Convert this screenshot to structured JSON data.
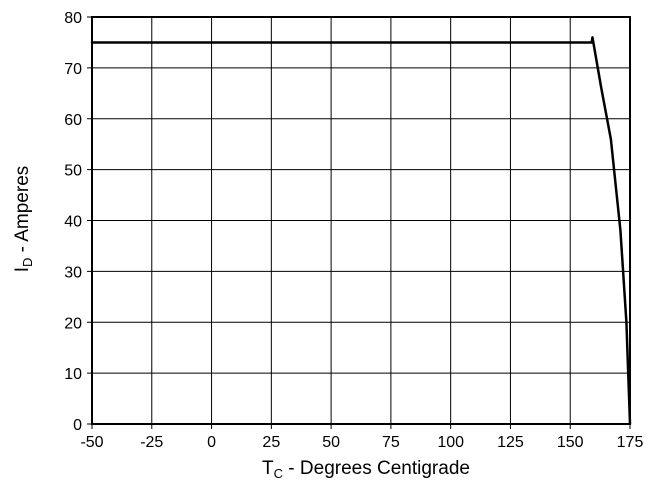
{
  "chart_data": {
    "type": "line",
    "title": "",
    "xlabel": {
      "symbol": "T",
      "subscript": "C",
      "rest": " - Degrees Centigrade"
    },
    "ylabel": {
      "symbol": "I",
      "subscript": "D",
      "rest": " - Amperes"
    },
    "xlim": [
      -50,
      175
    ],
    "ylim": [
      0,
      80
    ],
    "x_ticks": [
      "-50",
      "-25",
      "0",
      "25",
      "50",
      "75",
      "100",
      "125",
      "150",
      "175"
    ],
    "y_ticks": [
      "0",
      "10",
      "20",
      "30",
      "40",
      "50",
      "60",
      "70",
      "80"
    ],
    "grid": true,
    "legend": "none",
    "line_color": "#000000",
    "series": [
      {
        "x": [
          -50,
          159,
          159.3,
          163,
          167,
          171,
          173.5,
          175
        ],
        "y": [
          75,
          75,
          76,
          66,
          56,
          38,
          20,
          0
        ]
      }
    ]
  }
}
